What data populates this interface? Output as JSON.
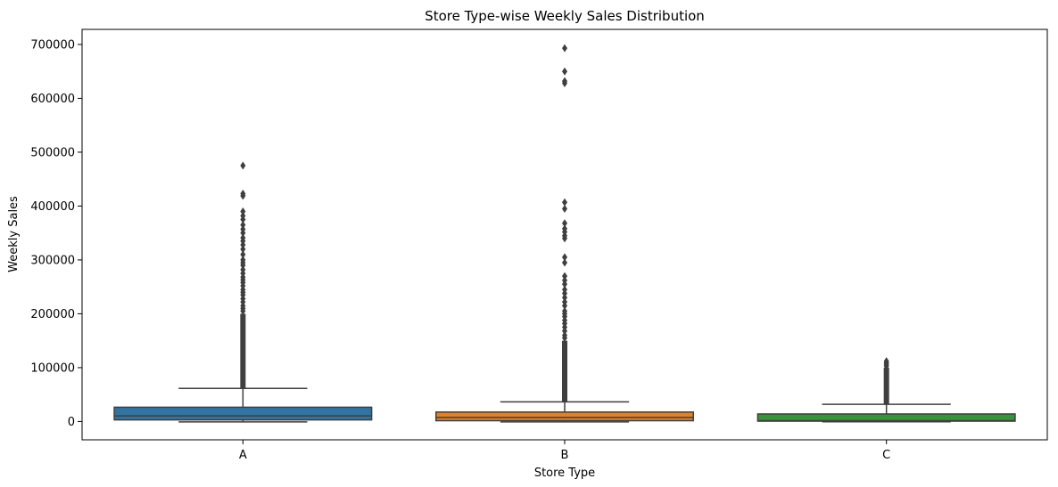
{
  "chart_data": {
    "type": "box",
    "title": "Store Type-wise Weekly Sales Distribution",
    "xlabel": "Store Type",
    "ylabel": "Weekly Sales",
    "ylim": [
      -34000,
      728000
    ],
    "yticks": [
      0,
      100000,
      200000,
      300000,
      400000,
      500000,
      600000,
      700000
    ],
    "ytick_labels": [
      "0",
      "100000",
      "200000",
      "300000",
      "400000",
      "500000",
      "600000",
      "700000"
    ],
    "grid": false,
    "categories": [
      "A",
      "B",
      "C"
    ],
    "boxes": [
      {
        "category": "A",
        "color": "#3274a1",
        "whisker_low": -800,
        "q1": 3000,
        "median": 10500,
        "q3": 26500,
        "whisker_high": 61500,
        "outlier_band": [
          62000,
          200000
        ],
        "outliers": [
          205000,
          210000,
          215000,
          222000,
          228000,
          235000,
          240000,
          245000,
          252000,
          258000,
          263000,
          268000,
          275000,
          282000,
          290000,
          295000,
          300000,
          310000,
          320000,
          328000,
          335000,
          341000,
          350000,
          357000,
          365000,
          375000,
          382000,
          390000,
          419000,
          423000,
          475000
        ]
      },
      {
        "category": "B",
        "color": "#e1812c",
        "whisker_low": -800,
        "q1": 1500,
        "median": 7500,
        "q3": 17500,
        "whisker_high": 36500,
        "outlier_band": [
          37000,
          150000
        ],
        "outliers": [
          155000,
          160000,
          168000,
          175000,
          182000,
          188000,
          195000,
          200000,
          205000,
          215000,
          222000,
          230000,
          238000,
          245000,
          255000,
          262000,
          270000,
          295000,
          305000,
          340000,
          345000,
          352000,
          358000,
          368000,
          395000,
          407000,
          628000,
          632000,
          650000,
          693000
        ]
      },
      {
        "category": "C",
        "color": "#3a923a",
        "whisker_low": -500,
        "q1": 600,
        "median": 1500,
        "q3": 14000,
        "whisker_high": 32000,
        "outlier_band": [
          32500,
          100000
        ],
        "outliers": [
          103000,
          106000,
          109000,
          112000
        ]
      }
    ]
  }
}
